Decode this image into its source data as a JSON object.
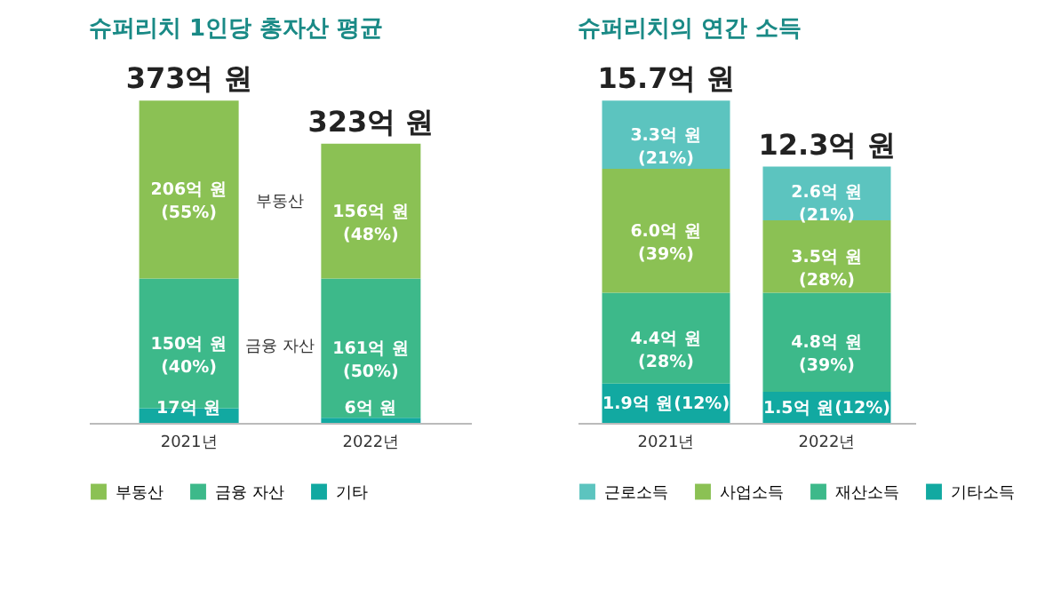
{
  "chart_data": [
    {
      "type": "bar",
      "title": "슈퍼리치 1인당 총자산 평균",
      "stacked": true,
      "categories": [
        "2021년",
        "2022년"
      ],
      "legend": "bottom",
      "series": [
        {
          "name": "기타",
          "color": "#12a9a1",
          "values": [
            17,
            6
          ],
          "value_labels": [
            "17억 원",
            "6억 원"
          ]
        },
        {
          "name": "금융 자산",
          "color": "#3db98a",
          "values": [
            150,
            161
          ],
          "value_labels": [
            "150억 원\n(40%)",
            "161억 원\n(50%)"
          ]
        },
        {
          "name": "부동산",
          "color": "#8bc154",
          "values": [
            206,
            156
          ],
          "value_labels": [
            "206억 원\n(55%)",
            "156억 원\n(48%)"
          ]
        }
      ],
      "totals": [
        "373억 원",
        "323억 원"
      ],
      "annotations": [
        "부동산",
        "금융 자산"
      ]
    },
    {
      "type": "bar",
      "title": "슈퍼리치의 연간 소득",
      "stacked": true,
      "categories": [
        "2021년",
        "2022년"
      ],
      "legend": "bottom",
      "series": [
        {
          "name": "기타소득",
          "color": "#12a9a1",
          "values": [
            1.9,
            1.5
          ],
          "value_labels": [
            "1.9억 원(12%)",
            "1.5억 원(12%)"
          ]
        },
        {
          "name": "재산소득",
          "color": "#3db98a",
          "values": [
            4.4,
            4.8
          ],
          "value_labels": [
            "4.4억 원\n(28%)",
            "4.8억 원\n(39%)"
          ]
        },
        {
          "name": "사업소득",
          "color": "#8bc154",
          "values": [
            6.0,
            3.5
          ],
          "value_labels": [
            "6.0억 원\n(39%)",
            "3.5억 원\n(28%)"
          ]
        },
        {
          "name": "근로소득",
          "color": "#5cc4bf",
          "values": [
            3.3,
            2.6
          ],
          "value_labels": [
            "3.3억 원\n(21%)",
            "2.6억 원\n(21%)"
          ]
        }
      ],
      "totals": [
        "15.7억 원",
        "12.3억 원"
      ]
    }
  ]
}
